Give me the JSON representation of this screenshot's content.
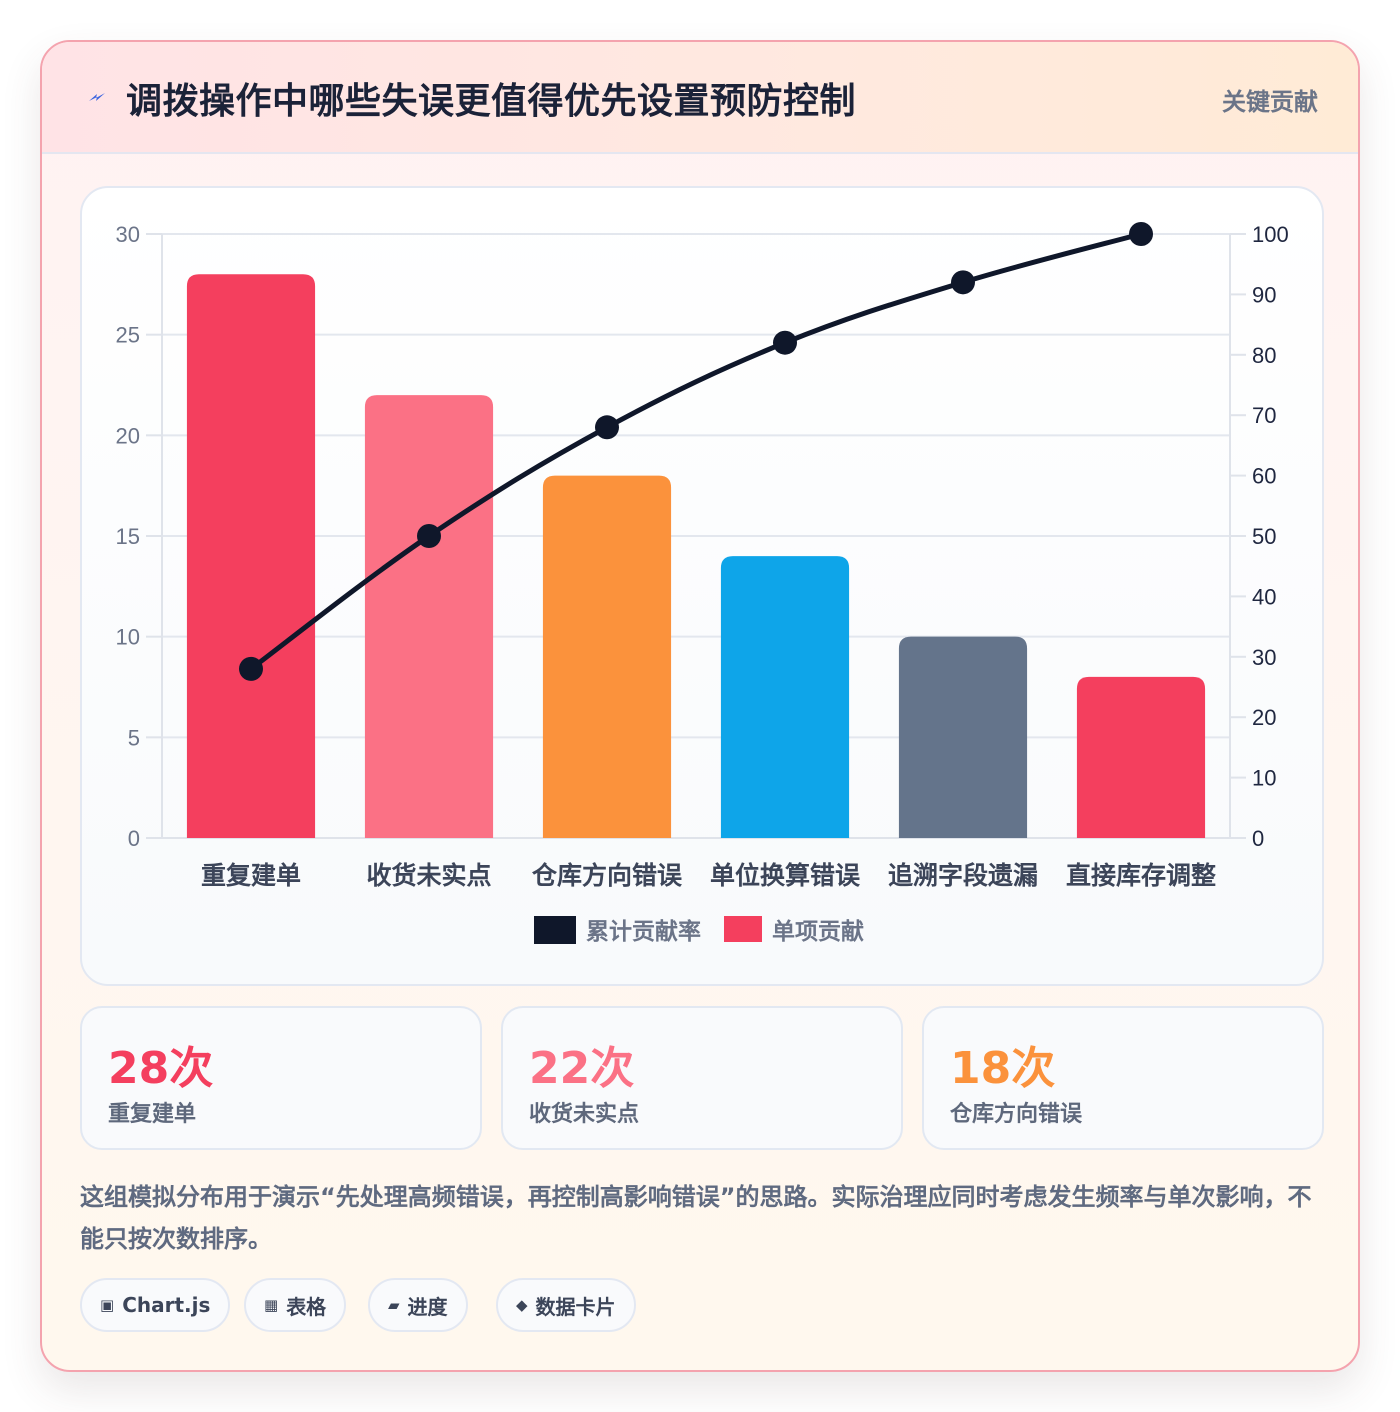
{
  "header": {
    "title": "调拨操作中哪些失误更值得优先设置预防控制",
    "tag": "关键贡献",
    "icon": "lightning-icon",
    "icon_color": "#3b64e0"
  },
  "chart_data": {
    "type": "bar",
    "categories": [
      "重复建单",
      "收货未实点",
      "仓库方向错误",
      "单位换算错误",
      "追溯字段遗漏",
      "直接库存调整"
    ],
    "series": [
      {
        "name": "单项贡献",
        "type": "bar",
        "axis": "left",
        "values": [
          28,
          22,
          18,
          14,
          10,
          8
        ],
        "colors": [
          "#f43f5e",
          "#fb7185",
          "#fb923c",
          "#0ea5e9",
          "#64748b",
          "#f43f5e"
        ],
        "legend_color": "#f43f5e"
      },
      {
        "name": "累计贡献率",
        "type": "line",
        "axis": "right",
        "values": [
          28,
          50,
          68,
          82,
          92,
          100
        ],
        "color": "#0f172a"
      }
    ],
    "y_left": {
      "min": 0,
      "max": 30,
      "ticks": [
        0,
        5,
        10,
        15,
        20,
        25,
        30
      ]
    },
    "y_right": {
      "min": 0,
      "max": 100,
      "ticks": [
        0,
        10,
        20,
        30,
        40,
        50,
        60,
        70,
        80,
        90,
        100
      ]
    },
    "grid": true,
    "legend_position": "bottom"
  },
  "stats": [
    {
      "value": "28次",
      "label": "重复建单",
      "color": "#f43f5e"
    },
    {
      "value": "22次",
      "label": "收货未实点",
      "color": "#fb7185"
    },
    {
      "value": "18次",
      "label": "仓库方向错误",
      "color": "#fb923c"
    }
  ],
  "note": "这组模拟分布用于演示“先处理高频错误，再控制高影响错误”的思路。实际治理应同时考虑发生频率与单次影响，不能只按次数排序。",
  "chips": [
    {
      "icon": "▣",
      "icon_name": "chart-icon",
      "label": "Chart.js"
    },
    {
      "icon": "▦",
      "icon_name": "table-icon",
      "label": "表格"
    },
    {
      "icon": "▰",
      "icon_name": "progress-icon",
      "label": "进度"
    },
    {
      "icon": "◆",
      "icon_name": "data-card-icon",
      "label": "数据卡片"
    }
  ]
}
